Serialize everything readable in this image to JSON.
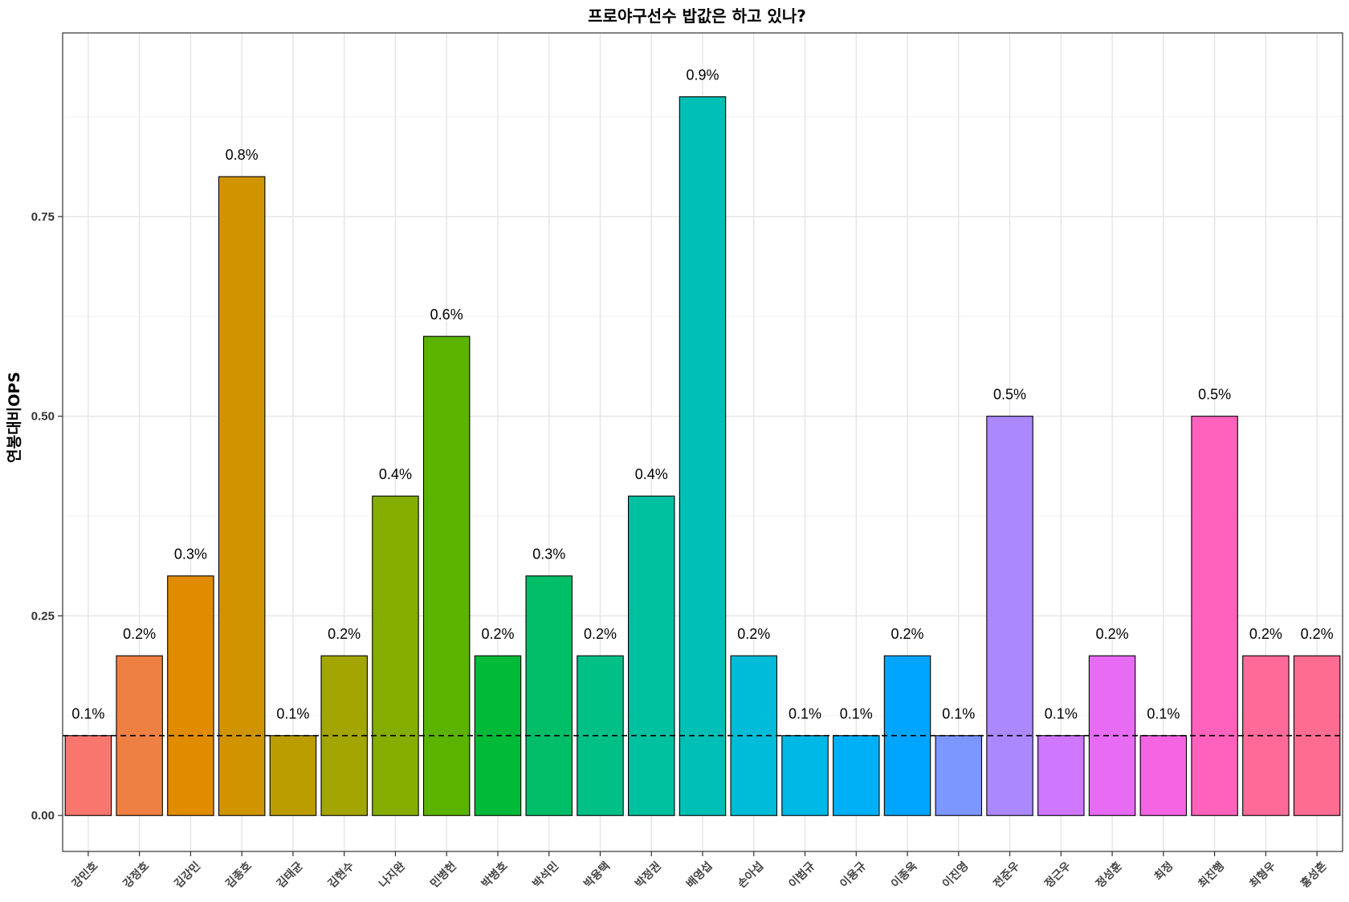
{
  "chart_data": {
    "type": "bar",
    "title": "프로야구선수 밥값은 하고 있나?",
    "xlabel": "",
    "ylabel": "연봉대비OPS",
    "ylim": [
      -0.045,
      0.98
    ],
    "yticks": [
      0.0,
      0.25,
      0.5,
      0.75
    ],
    "ytick_labels": [
      "0.00",
      "0.25",
      "0.50",
      "0.75"
    ],
    "reference_line": 0.1,
    "grid": true,
    "legend": "none",
    "categories": [
      "강민호",
      "강정호",
      "김강민",
      "김종호",
      "김태균",
      "김현수",
      "나지완",
      "민병헌",
      "박병호",
      "박석민",
      "박용택",
      "박정권",
      "배영섭",
      "손아섭",
      "이범규",
      "이용규",
      "이종욱",
      "이진영",
      "전준우",
      "정근우",
      "정성훈",
      "최정",
      "최진행",
      "최형우",
      "홍성흔"
    ],
    "values": [
      0.1,
      0.2,
      0.3,
      0.8,
      0.1,
      0.2,
      0.4,
      0.6,
      0.2,
      0.3,
      0.2,
      0.4,
      0.9,
      0.2,
      0.1,
      0.1,
      0.2,
      0.1,
      0.5,
      0.1,
      0.2,
      0.1,
      0.5,
      0.2,
      0.2
    ],
    "labels": [
      "0.1%",
      "0.2%",
      "0.3%",
      "0.8%",
      "0.1%",
      "0.2%",
      "0.4%",
      "0.6%",
      "0.2%",
      "0.3%",
      "0.2%",
      "0.4%",
      "0.9%",
      "0.2%",
      "0.1%",
      "0.1%",
      "0.2%",
      "0.1%",
      "0.5%",
      "0.1%",
      "0.2%",
      "0.1%",
      "0.5%",
      "0.2%",
      "0.2%"
    ],
    "colors": [
      "#F8766D",
      "#EE8044",
      "#E08B00",
      "#CF9400",
      "#BB9D00",
      "#A3A500",
      "#85AD00",
      "#5BB300",
      "#00BA38",
      "#00BE67",
      "#00C086",
      "#00C19F",
      "#00BFB4",
      "#00BCD8",
      "#00B8E5",
      "#00B0F6",
      "#00A5FF",
      "#7C97FF",
      "#AC88FF",
      "#CF78FF",
      "#E76BF3",
      "#F564E3",
      "#FF62BC",
      "#FF6A98",
      "#FF6C91"
    ]
  }
}
